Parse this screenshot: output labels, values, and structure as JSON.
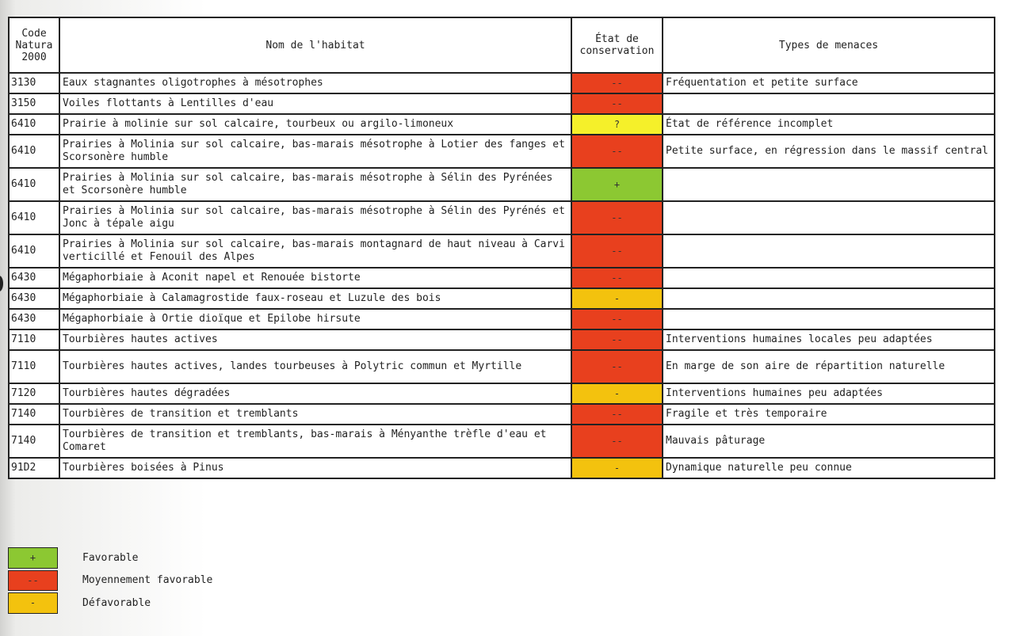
{
  "table": {
    "headers": {
      "code": "Code Natura 2000",
      "name": "Nom de l'habitat",
      "etat": "État de conservation",
      "menaces": "Types de menaces"
    },
    "rows": [
      {
        "code": "3130",
        "name": "Eaux stagnantes oligotrophes à mésotrophes",
        "etat": "--",
        "etat_class": "moy",
        "menaces": "Fréquentation et petite surface"
      },
      {
        "code": "3150",
        "name": "Voiles flottants à Lentilles d'eau",
        "etat": "--",
        "etat_class": "moy",
        "menaces": ""
      },
      {
        "code": "6410",
        "name": "Prairie à molinie sur sol calcaire, tourbeux ou argilo-limoneux",
        "etat": "?",
        "etat_class": "unk",
        "menaces": "État de référence incomplet"
      },
      {
        "code": "6410",
        "name": "Prairies à Molinia sur sol calcaire, bas-marais mésotrophe à Lotier des fanges et Scorsonère humble",
        "etat": "--",
        "etat_class": "moy",
        "menaces": "Petite surface, en régression dans le massif central"
      },
      {
        "code": "6410",
        "name": "Prairies à Molinia sur sol calcaire, bas-marais mésotrophe à Sélin des Pyrénées et Scorsonère humble",
        "etat": "+",
        "etat_class": "fav",
        "menaces": ""
      },
      {
        "code": "6410",
        "name": "Prairies à Molinia sur sol calcaire, bas-marais mésotrophe à Sélin des Pyrénés et Jonc à tépale aigu",
        "etat": "--",
        "etat_class": "moy",
        "menaces": ""
      },
      {
        "code": "6410",
        "name": "Prairies à Molinia sur sol calcaire, bas-marais montagnard de haut niveau à Carvi verticillé et Fenouil des Alpes",
        "etat": "--",
        "etat_class": "moy",
        "menaces": ""
      },
      {
        "code": "6430",
        "name": "Mégaphorbiaie à Aconit napel et Renouée bistorte",
        "etat": "--",
        "etat_class": "moy",
        "menaces": ""
      },
      {
        "code": "6430",
        "name": "Mégaphorbiaie à Calamagrostide faux-roseau et Luzule des bois",
        "etat": "-",
        "etat_class": "def",
        "menaces": ""
      },
      {
        "code": "6430",
        "name": "Mégaphorbiaie à Ortie dioïque et Epilobe hirsute",
        "etat": "--",
        "etat_class": "moy",
        "menaces": ""
      },
      {
        "code": "7110",
        "name": "Tourbières hautes actives",
        "etat": "--",
        "etat_class": "moy",
        "menaces": "Interventions humaines locales peu adaptées"
      },
      {
        "code": "7110",
        "name": "Tourbières hautes actives, landes tourbeuses à Polytric commun et Myrtille",
        "etat": "--",
        "etat_class": "moy",
        "menaces": "En marge de son aire de répartition naturelle"
      },
      {
        "code": "7120",
        "name": "Tourbières hautes dégradées",
        "etat": "-",
        "etat_class": "def",
        "menaces": "Interventions humaines peu adaptées"
      },
      {
        "code": "7140",
        "name": "Tourbières de transition et tremblants",
        "etat": "--",
        "etat_class": "moy",
        "menaces": "Fragile et très temporaire"
      },
      {
        "code": "7140",
        "name": "Tourbières de transition et tremblants, bas-marais à Ményanthe trèfle d'eau et Comaret",
        "etat": "--",
        "etat_class": "moy",
        "menaces": "Mauvais pâturage"
      },
      {
        "code": "91D2",
        "name": "Tourbières boisées à Pinus",
        "etat": "-",
        "etat_class": "def",
        "menaces": "Dynamique naturelle peu connue"
      }
    ]
  },
  "legend": [
    {
      "symbol": "+",
      "label": "Favorable",
      "color": "#8cc832"
    },
    {
      "symbol": "--",
      "label": "Moyennement favorable",
      "color": "#e8401e"
    },
    {
      "symbol": "-",
      "label": "Défavorable",
      "color": "#f3c20e"
    }
  ],
  "colors": {
    "favorable": "#8cc832",
    "moyennement_favorable": "#e8401e",
    "defavorable": "#f3c20e",
    "inconnu": "#f5f02a"
  }
}
